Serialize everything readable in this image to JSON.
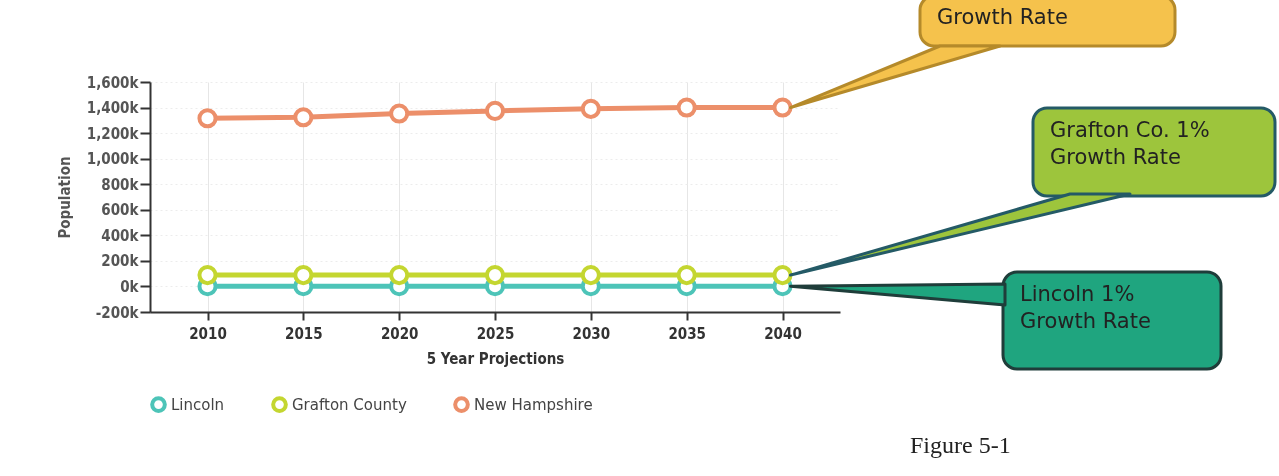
{
  "chart_data": {
    "type": "line",
    "xlabel": "5 Year Projections",
    "ylabel": "Population",
    "categories": [
      "2010",
      "2015",
      "2020",
      "2025",
      "2030",
      "2035",
      "2040"
    ],
    "series": [
      {
        "name": "Lincoln",
        "color": "#4dc4b8",
        "values": [
          2,
          2,
          2,
          2,
          2,
          2,
          2
        ]
      },
      {
        "name": "Grafton County",
        "color": "#c4d630",
        "values": [
          89,
          89,
          89,
          89,
          89,
          89,
          89
        ]
      },
      {
        "name": "New Hampshire",
        "color": "#ec8f6a",
        "values": [
          1316,
          1324,
          1353,
          1374,
          1390,
          1400,
          1400
        ]
      }
    ],
    "ylim": [
      -200,
      1600
    ],
    "yticks": [
      {
        "value": -200,
        "label": "-200k"
      },
      {
        "value": 0,
        "label": "0k"
      },
      {
        "value": 200,
        "label": "200k"
      },
      {
        "value": 400,
        "label": "400k"
      },
      {
        "value": 600,
        "label": "600k"
      },
      {
        "value": 800,
        "label": "800k"
      },
      {
        "value": 1000,
        "label": "1,000k"
      },
      {
        "value": 1200,
        "label": "1,200k"
      },
      {
        "value": 1400,
        "label": "1,400k"
      },
      {
        "value": 1600,
        "label": "1,600k"
      }
    ],
    "grid": true,
    "legend": "bottom",
    "marker": "circle",
    "annotations": [
      {
        "text": "Growth Rate",
        "x": "2040",
        "y": 1400
      },
      {
        "text": "Grafton Co. 1% Growth Rate",
        "x": "2040",
        "y": 89
      },
      {
        "text": "Lincoln 1% Growth Rate",
        "x": "2040",
        "y": 2
      },
      "Figure 5-1"
    ]
  }
}
